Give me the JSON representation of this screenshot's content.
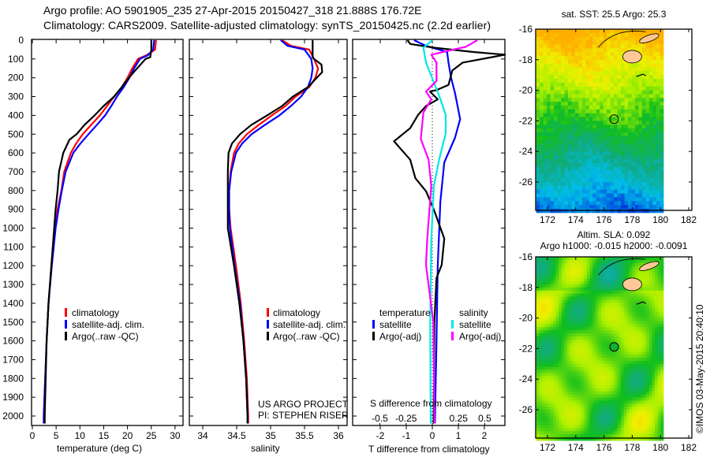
{
  "title": {
    "line1": "Argo profile: AO 5901905_235 27-Apr-2015 20150427_318 21.888S 176.72E",
    "line2": "Climatology: CARS2009. Satellite-adjusted climatology: synTS_20150425.nc (2.2d earlier)"
  },
  "colors": {
    "climatology": "#ff0000",
    "satellite": "#0000ff",
    "argo": "#000000",
    "s_satellite": "#00e8e8",
    "s_argo": "#ff00ff"
  },
  "depth_ticks": [
    "0",
    "100",
    "200",
    "300",
    "400",
    "500",
    "600",
    "700",
    "800",
    "900",
    "1000",
    "1100",
    "1200",
    "1300",
    "1400",
    "1500",
    "1600",
    "1700",
    "1800",
    "1900",
    "2000"
  ],
  "legend_profiles": [
    "climatology",
    "satellite-adj. clim.",
    "Argo(..raw -QC)"
  ],
  "project": {
    "line1": "US ARGO PROJECT",
    "line2": "PI: STEPHEN RISER"
  },
  "legend_diff": {
    "temperature": "temperature",
    "salinity": "salinity",
    "satellite": "satellite",
    "argo": "Argo(-adj)"
  },
  "copyright": "©IMOS 03-May-2015 20:40:10",
  "chart_data": [
    {
      "type": "line",
      "xlabel": "temperature (deg C)",
      "ylabel": "depth",
      "xlim": [
        0,
        30
      ],
      "ylim": [
        2040,
        0
      ],
      "xticks": [
        "0",
        "5",
        "10",
        "15",
        "20",
        "25",
        "30"
      ],
      "series": [
        {
          "name": "climatology",
          "depth": [
            0,
            50,
            80,
            100,
            150,
            200,
            250,
            300,
            350,
            400,
            450,
            500,
            550,
            600,
            700,
            800,
            900,
            1000,
            1200,
            1400,
            1600,
            1800,
            2000,
            2040
          ],
          "values": [
            26.0,
            25.8,
            24.0,
            22.2,
            21.0,
            20.0,
            18.8,
            17.2,
            15.7,
            14.2,
            12.4,
            10.6,
            9.2,
            8.1,
            6.7,
            6.1,
            5.3,
            4.8,
            4.0,
            3.4,
            3.0,
            2.7,
            2.4,
            2.4
          ]
        },
        {
          "name": "satellite-adj. clim.",
          "depth": [
            0,
            50,
            80,
            100,
            150,
            200,
            250,
            300,
            350,
            400,
            450,
            500,
            550,
            600,
            700,
            800,
            900,
            1000,
            1200,
            1400,
            1600,
            1800,
            2000,
            2040
          ],
          "values": [
            25.6,
            25.4,
            24.3,
            22.6,
            21.4,
            20.4,
            19.2,
            17.8,
            16.6,
            15.3,
            13.6,
            11.8,
            10.1,
            8.6,
            7.0,
            6.2,
            5.5,
            4.9,
            4.1,
            3.4,
            3.0,
            2.7,
            2.4,
            2.4
          ]
        },
        {
          "name": "Argo(..raw -QC)",
          "depth": [
            0,
            50,
            90,
            100,
            150,
            200,
            250,
            300,
            350,
            400,
            450,
            500,
            530,
            600,
            700,
            800,
            900,
            1000,
            1200,
            1400,
            1600,
            1800,
            2000,
            2040
          ],
          "values": [
            25.0,
            25.0,
            24.8,
            23.8,
            22.0,
            20.3,
            18.8,
            17.2,
            15.0,
            13.1,
            11.0,
            9.3,
            7.8,
            6.5,
            5.6,
            5.3,
            4.9,
            4.6,
            4.0,
            3.4,
            3.0,
            2.8,
            2.6,
            2.6
          ]
        }
      ]
    },
    {
      "type": "line",
      "xlabel": "salinity",
      "ylabel": "depth",
      "xlim": [
        33.9,
        36.05
      ],
      "ylim": [
        2040,
        0
      ],
      "xticks": [
        "34",
        "34.5",
        "35",
        "35.5",
        "36"
      ],
      "series": [
        {
          "name": "climatology",
          "depth": [
            0,
            30,
            50,
            100,
            150,
            200,
            250,
            300,
            350,
            400,
            450,
            500,
            550,
            600,
            700,
            800,
            900,
            1000,
            1200,
            1400,
            1600,
            1800,
            2000,
            2040
          ],
          "values": [
            35.17,
            35.3,
            35.57,
            35.64,
            35.7,
            35.66,
            35.57,
            35.37,
            35.22,
            35.02,
            34.83,
            34.65,
            34.53,
            34.46,
            34.41,
            34.39,
            34.39,
            34.41,
            34.49,
            34.56,
            34.61,
            34.65,
            34.67,
            34.67
          ]
        },
        {
          "name": "satellite-adj. clim.",
          "depth": [
            0,
            30,
            50,
            100,
            150,
            200,
            250,
            300,
            350,
            400,
            450,
            500,
            550,
            600,
            700,
            800,
            900,
            1000,
            1200,
            1400,
            1600,
            1800,
            2000,
            2040
          ],
          "values": [
            35.15,
            35.25,
            35.5,
            35.6,
            35.62,
            35.6,
            35.55,
            35.45,
            35.3,
            35.13,
            34.92,
            34.72,
            34.58,
            34.49,
            34.42,
            34.39,
            34.39,
            34.4,
            34.47,
            34.55,
            34.6,
            34.64,
            34.66,
            34.66
          ]
        },
        {
          "name": "Argo(..raw -QC)",
          "depth": [
            0,
            90,
            100,
            130,
            170,
            200,
            250,
            300,
            350,
            400,
            450,
            500,
            550,
            600,
            700,
            1000,
            1200,
            1400,
            1600,
            1800,
            2000,
            2040
          ],
          "values": [
            35.62,
            35.62,
            35.64,
            35.75,
            35.76,
            35.68,
            35.55,
            35.33,
            35.17,
            34.95,
            34.72,
            34.55,
            34.43,
            34.38,
            34.37,
            34.37,
            34.46,
            34.54,
            34.6,
            34.64,
            34.66,
            34.66
          ]
        }
      ]
    },
    {
      "type": "line",
      "xlabel": "T difference from climatology",
      "x2label": "S difference from climatology",
      "xlim": [
        -3.05,
        2.8
      ],
      "ylim": [
        2040,
        0
      ],
      "xticks": [
        "-2",
        "-1",
        "0",
        "1",
        "2"
      ],
      "x2ticks": [
        "-0.5",
        "-0.25",
        "0",
        "0.25",
        "0.5"
      ],
      "series": [
        {
          "name": "temperature satellite",
          "axis": "T",
          "depth": [
            0,
            30,
            63,
            119,
            200,
            280,
            420,
            520,
            650,
            860,
            1200,
            1600,
            2040
          ],
          "values": [
            -0.7,
            -0.24,
            0.57,
            0.62,
            0.72,
            0.87,
            1.07,
            0.87,
            0.46,
            0.31,
            0.21,
            0.16,
            0.1
          ]
        },
        {
          "name": "temperature Argo(-adj)",
          "axis": "T",
          "depth": [
            0,
            20,
            40,
            63,
            77,
            88,
            119,
            161,
            238,
            266,
            273,
            315,
            350,
            398,
            468,
            538,
            636,
            734,
            804,
            902,
            1056,
            1196,
            1266,
            1500,
            2040
          ],
          "values": [
            -0.95,
            -0.85,
            0.06,
            1.58,
            2.79,
            2.38,
            1.17,
            0.77,
            0.62,
            0.16,
            -0.09,
            0.21,
            -0.24,
            -0.55,
            -0.85,
            -1.47,
            -0.85,
            -0.65,
            -0.24,
            0.06,
            0.46,
            0.36,
            0.16,
            0.08,
            0.05
          ]
        },
        {
          "name": "salinity satellite",
          "axis": "S",
          "depth": [
            0,
            40,
            119,
            189,
            315,
            398,
            496,
            636,
            776,
            1056,
            1500,
            2040
          ],
          "values": [
            0.0,
            -0.085,
            -0.06,
            -0.01,
            0.078,
            0.128,
            0.128,
            0.065,
            0.015,
            -0.01,
            -0.02,
            -0.015
          ]
        },
        {
          "name": "salinity Argo(-adj)",
          "axis": "S",
          "depth": [
            0,
            35,
            77,
            119,
            217,
            273,
            315,
            385,
            525,
            636,
            776,
            1056,
            1196,
            1500,
            2040
          ],
          "values": [
            0.43,
            0.32,
            -0.01,
            0.04,
            0.04,
            -0.06,
            -0.01,
            -0.085,
            -0.11,
            -0.035,
            -0.01,
            -0.048,
            -0.06,
            0.01,
            0.02
          ]
        }
      ]
    },
    {
      "type": "heatmap",
      "title": "sat. SST: 25.5 Argo: 25.3",
      "lon_ticks": [
        "172",
        "174",
        "176",
        "178",
        "180",
        "182"
      ],
      "lat_ticks": [
        "-16",
        "-18",
        "-20",
        "-22",
        "-24",
        "-26"
      ],
      "profile_location": {
        "lat": -21.888,
        "lon": 176.72
      }
    },
    {
      "type": "heatmap",
      "title": "Altim. SLA: 0.092",
      "subtitle": "Argo h1000: -0.015 h2000: -0.0091",
      "lon_ticks": [
        "172",
        "174",
        "176",
        "178",
        "180",
        "182"
      ],
      "lat_ticks": [
        "-16",
        "-18",
        "-20",
        "-22",
        "-24",
        "-26"
      ],
      "profile_location": {
        "lat": -21.888,
        "lon": 176.72
      }
    }
  ]
}
